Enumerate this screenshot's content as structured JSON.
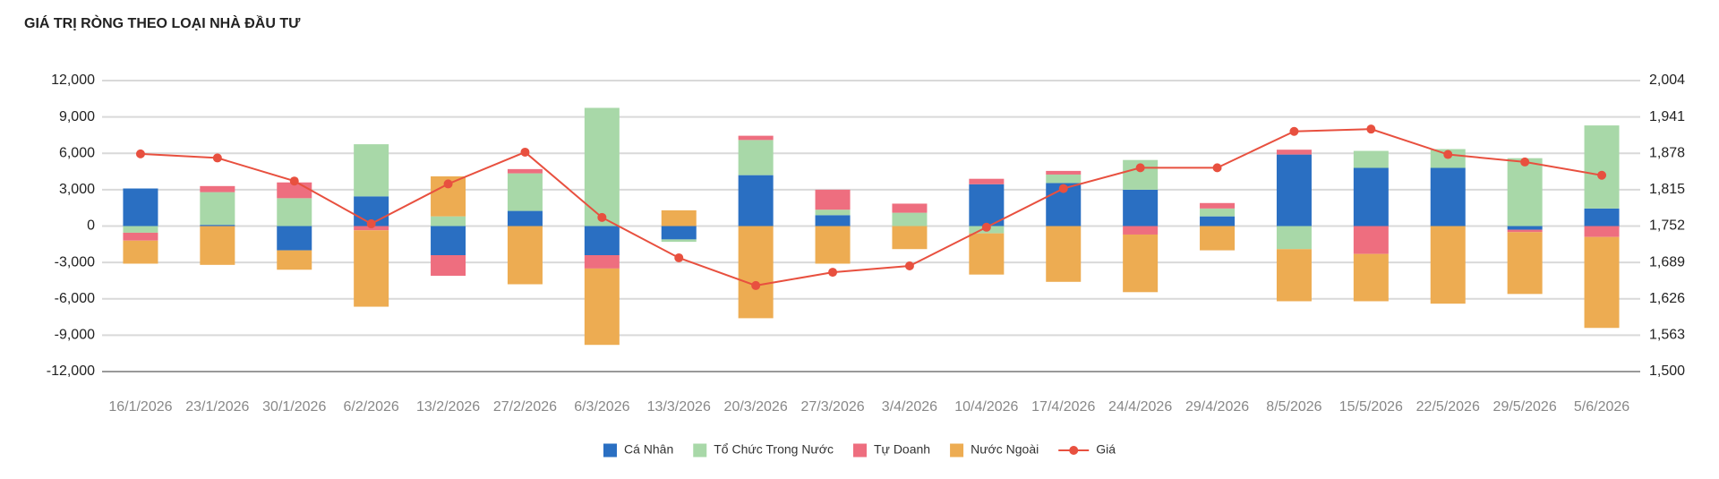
{
  "chart_data": {
    "type": "bar",
    "stacked": true,
    "title": "GIÁ TRỊ RÒNG THEO LOẠI NHÀ ĐẦU TƯ",
    "categories": [
      "16/1/2026",
      "23/1/2026",
      "30/1/2026",
      "6/2/2026",
      "13/2/2026",
      "27/2/2026",
      "6/3/2026",
      "13/3/2026",
      "20/3/2026",
      "27/3/2026",
      "3/4/2026",
      "10/4/2026",
      "17/4/2026",
      "24/4/2026",
      "29/4/2026",
      "8/5/2026",
      "15/5/2026",
      "22/5/2026",
      "29/5/2026",
      "5/6/2026"
    ],
    "series": [
      {
        "name": "Cá Nhân",
        "color": "#2a6fc2",
        "values": [
          3100,
          100,
          -2000,
          2450,
          -2400,
          1250,
          -2400,
          -1100,
          4200,
          900,
          0,
          3450,
          3550,
          3000,
          800,
          5900,
          4800,
          4800,
          -300,
          1450
        ]
      },
      {
        "name": "Tổ Chức Trong Nước",
        "color": "#a8d8a8",
        "values": [
          -550,
          2700,
          2300,
          4300,
          800,
          3100,
          9750,
          -200,
          2900,
          450,
          1100,
          -600,
          700,
          2450,
          650,
          -1900,
          1400,
          1550,
          5600,
          6850
        ]
      },
      {
        "name": "Tự Doanh",
        "color": "#ee6e7f",
        "values": [
          -650,
          500,
          1300,
          -350,
          -1700,
          350,
          -1100,
          0,
          350,
          1650,
          750,
          450,
          300,
          -700,
          450,
          400,
          -2300,
          0,
          -200,
          -900
        ]
      },
      {
        "name": "Nước Ngoài",
        "color": "#edac52",
        "values": [
          -1900,
          -3200,
          -1600,
          -6300,
          3300,
          -4800,
          -6300,
          1300,
          -7600,
          -3100,
          -1900,
          -3400,
          -4600,
          -4750,
          -2000,
          -4300,
          -3900,
          -6400,
          -5100,
          -7500
        ]
      },
      {
        "name": "Giá",
        "color": "#e8503f",
        "type": "line",
        "axis": "y2",
        "values": [
          1877,
          1870,
          1830,
          1756,
          1825,
          1880,
          1767,
          1697,
          1649,
          1672,
          1683,
          1750,
          1817,
          1853,
          1853,
          1916,
          1920,
          1876,
          1863,
          1840
        ]
      }
    ],
    "ylim": [
      -12000,
      12000
    ],
    "yticks": [
      {
        "value": -12000,
        "label": "-12,000"
      },
      {
        "value": -9000,
        "label": "-9,000"
      },
      {
        "value": -6000,
        "label": "-6,000"
      },
      {
        "value": -3000,
        "label": "-3,000"
      },
      0,
      {
        "value": 3000,
        "label": "3,000"
      },
      {
        "value": 6000,
        "label": "6,000"
      },
      {
        "value": 9000,
        "label": "9,000"
      },
      {
        "value": 12000,
        "label": "12,000"
      }
    ],
    "y2lim": [
      1500,
      2004
    ],
    "y2ticks": [
      {
        "value": 1500,
        "label": "1,500"
      },
      {
        "value": 1563,
        "label": "1,563"
      },
      {
        "value": 1626,
        "label": "1,626"
      },
      {
        "value": 1689,
        "label": "1,689"
      },
      {
        "value": 1752,
        "label": "1,752"
      },
      {
        "value": 1815,
        "label": "1,815"
      },
      {
        "value": 1878,
        "label": "1,878"
      },
      {
        "value": 1941,
        "label": "1,941"
      },
      {
        "value": 2004,
        "label": "2,004"
      }
    ],
    "grid": true,
    "legend": "bottom"
  }
}
